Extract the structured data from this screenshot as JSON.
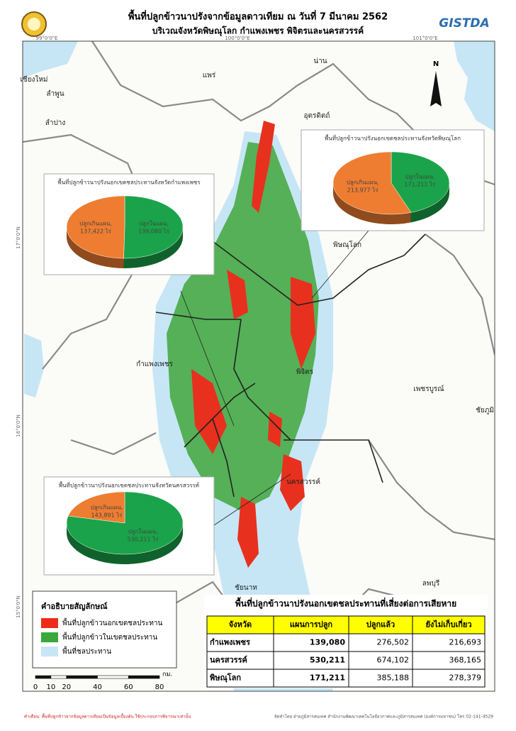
{
  "header": {
    "title": "พื้นที่ปลูกข้าวนาปรังจากข้อมูลดาวเทียม ณ วันที่ 7 มีนาคม 2562",
    "subtitle": "บริเวณจังหวัดพิษณุโลก กำแพงเพชร พิจิตรและนครสวรรค์",
    "logo": "GISTDA"
  },
  "coordinates": {
    "longitude": [
      "99°0'0\"E",
      "100°0'0\"E",
      "101°0'0\"E"
    ],
    "latitude": [
      "17°0'0\"N",
      "16°0'0\"N",
      "15°0'0\"N"
    ]
  },
  "places": [
    "เชียงใหม่",
    "ลำพูน",
    "ลำปาง",
    "แพร่",
    "น่าน",
    "อุตรดิตถ์",
    "พิษณุโลก",
    "กำแพงเพชร",
    "พิจิตร",
    "เพชรบูรณ์",
    "ชัยภูมิ",
    "นครสวรรค์",
    "ชัยนาท",
    "ลพบุรี"
  ],
  "north": "N",
  "pies": [
    {
      "title": "พื้นที่ปลูกข้าวนาปรังนอกเขตชลประทานจังหวัดกำแพงเพชร",
      "slices": [
        {
          "label": "ปลูกในแผน,",
          "value": 139080,
          "value_label": "139,080 ไร่",
          "color": "#1aa34a"
        },
        {
          "label": "ปลูกเกินแผน,",
          "value": 137422,
          "value_label": "137,422 ไร่",
          "color": "#ee7d31"
        }
      ]
    },
    {
      "title": "พื้นที่ปลูกข้าวนาปรังนอกเขตชลประทานจังหวัดพิษณุโลก",
      "slices": [
        {
          "label": "ปลูกในแผน,",
          "value": 171211,
          "value_label": "171,211 ไร่",
          "color": "#1aa34a"
        },
        {
          "label": "ปลูกเกินแผน,",
          "value": 213977,
          "value_label": "213,977 ไร่",
          "color": "#ee7d31"
        }
      ]
    },
    {
      "title": "พื้นที่ปลูกข้าวนาปรังนอกเขตชลประทานจังหวัดนครสวรรค์",
      "slices": [
        {
          "label": "ปลูกในแผน,",
          "value": 530211,
          "value_label": "530,211 ไร่",
          "color": "#1aa34a"
        },
        {
          "label": "ปลูกเกินแผน,",
          "value": 143891,
          "value_label": "143,891 ไร่",
          "color": "#ee7d31"
        }
      ]
    }
  ],
  "legend": {
    "title": "คำอธิบายสัญลักษณ์",
    "items": [
      {
        "label": "พื้นที่ปลูกข้าวนอกเขตชลประทาน",
        "color": "#ee2a1b"
      },
      {
        "label": "พื้นที่ปลูกข้าวในเขตชลประทาน",
        "color": "#3aa83a"
      },
      {
        "label": "พื้นที่ชลประทาน",
        "color": "#c6e6f5"
      }
    ]
  },
  "scale": {
    "ticks": [
      0,
      10,
      20,
      40,
      60,
      80
    ],
    "unit": "กม."
  },
  "table": {
    "title": "พื้นที่ปลูกข้าวนาปรังนอกเขตชลประทานที่เสี่ยงต่อการเสียหาย",
    "header": [
      "จังหวัด",
      "แผนการปลูก",
      "ปลูกแล้ว",
      "ยังไม่เก็บเกี่ยว"
    ],
    "rows": [
      [
        "กำแพงเพชร",
        "139,080",
        "276,502",
        "216,693"
      ],
      [
        "นครสวรรค์",
        "530,211",
        "674,102",
        "368,165"
      ],
      [
        "พิษณุโลก",
        "171,211",
        "385,188",
        "278,379"
      ]
    ]
  },
  "footer": {
    "warning": "คำเตือน: พื้นที่ปลูกข้าวจากข้อมูลดาวเทียมเป็นข้อมูลเบื้องต้น ใช้ประกอบการพิจารณาเท่านั้น",
    "credit": "จัดทำโดย ฝ่ายภูมิสารสนเทศ สำนักงานพัฒนาเทคโนโลยีอวกาศและภูมิสารสนเทศ (องค์การมหาชน) โทร 02-141-4529"
  }
}
